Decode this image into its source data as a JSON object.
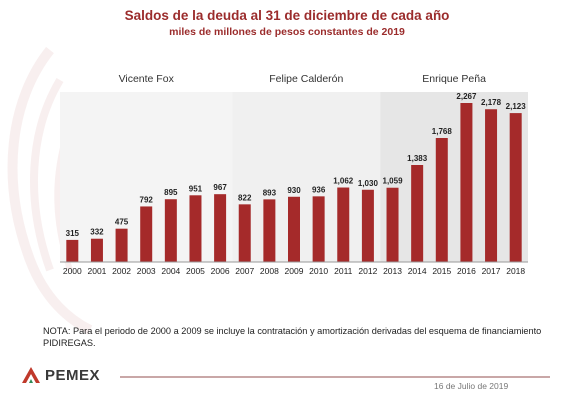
{
  "title": "Saldos de la deuda al 31 de diciembre de cada año",
  "subtitle": "miles de millones de pesos constantes de 2019",
  "note": "NOTA: Para el periodo de 2000 a 2009 se incluye la contratación y amortización derivadas del esquema de financiamiento PIDIREGAS.",
  "logo_text": "PEMEX",
  "date": "16 de Julio de 2019",
  "colors": {
    "bar": "#a52a2a",
    "title": "#9b2c2c",
    "band_light": "#f4f4f4",
    "band_dark": "#e6e6e6"
  },
  "chart_data": {
    "type": "bar",
    "categories": [
      "2000",
      "2001",
      "2002",
      "2003",
      "2004",
      "2005",
      "2006",
      "2007",
      "2008",
      "2009",
      "2010",
      "2011",
      "2012",
      "2013",
      "2014",
      "2015",
      "2016",
      "2017",
      "2018"
    ],
    "values": [
      315,
      332,
      475,
      792,
      895,
      951,
      967,
      822,
      893,
      930,
      936,
      1062,
      1030,
      1059,
      1383,
      1768,
      2267,
      2178,
      2123
    ],
    "value_labels": [
      "315",
      "332",
      "475",
      "792",
      "895",
      "951",
      "967",
      "822",
      "893",
      "930",
      "936",
      "1,062",
      "1,030",
      "1,059",
      "1,383",
      "1,768",
      "2,267",
      "2,178",
      "2,123"
    ],
    "periods": [
      {
        "name": "Vicente Fox",
        "first_index": 0,
        "last_index": 6
      },
      {
        "name": "Felipe Calderón",
        "first_index": 7,
        "last_index": 12
      },
      {
        "name": "Enrique Peña",
        "first_index": 13,
        "last_index": 18
      }
    ],
    "ylim": [
      0,
      2300
    ],
    "grid": false
  }
}
